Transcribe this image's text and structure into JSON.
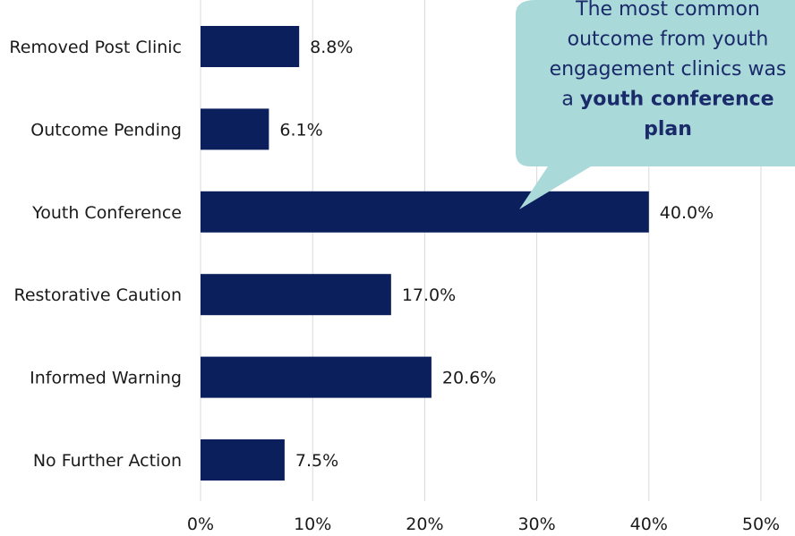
{
  "colors": {
    "bar": "#0b1f5c",
    "grid": "#d9d9d9",
    "callout_fill": "#a9d9d8",
    "callout_text": "#1a2a6a"
  },
  "chart_data": {
    "type": "bar",
    "orientation": "horizontal",
    "categories": [
      "Removed Post Clinic",
      "Outcome Pending",
      "Youth Conference",
      "Restorative Caution",
      "Informed Warning",
      "No Further Action"
    ],
    "values": [
      8.8,
      6.1,
      40.0,
      17.0,
      20.6,
      7.5
    ],
    "value_labels": [
      "8.8%",
      "6.1%",
      "40.0%",
      "17.0%",
      "20.6%",
      "7.5%"
    ],
    "xlim": [
      0,
      50
    ],
    "xticks": [
      0,
      10,
      20,
      30,
      40,
      50
    ],
    "xtick_labels": [
      "0%",
      "10%",
      "20%",
      "30%",
      "40%",
      "50%"
    ],
    "grid": "vertical",
    "title": "",
    "xlabel": "",
    "ylabel": ""
  },
  "callout": {
    "lines": [
      [
        {
          "text": "The most common",
          "bold": false
        }
      ],
      [
        {
          "text": "outcome from youth",
          "bold": false
        }
      ],
      [
        {
          "text": "engagement clinics was",
          "bold": false
        }
      ],
      [
        {
          "text": "a ",
          "bold": false
        },
        {
          "text": "youth conference",
          "bold": true
        }
      ],
      [
        {
          "text": "plan",
          "bold": true
        }
      ]
    ]
  }
}
